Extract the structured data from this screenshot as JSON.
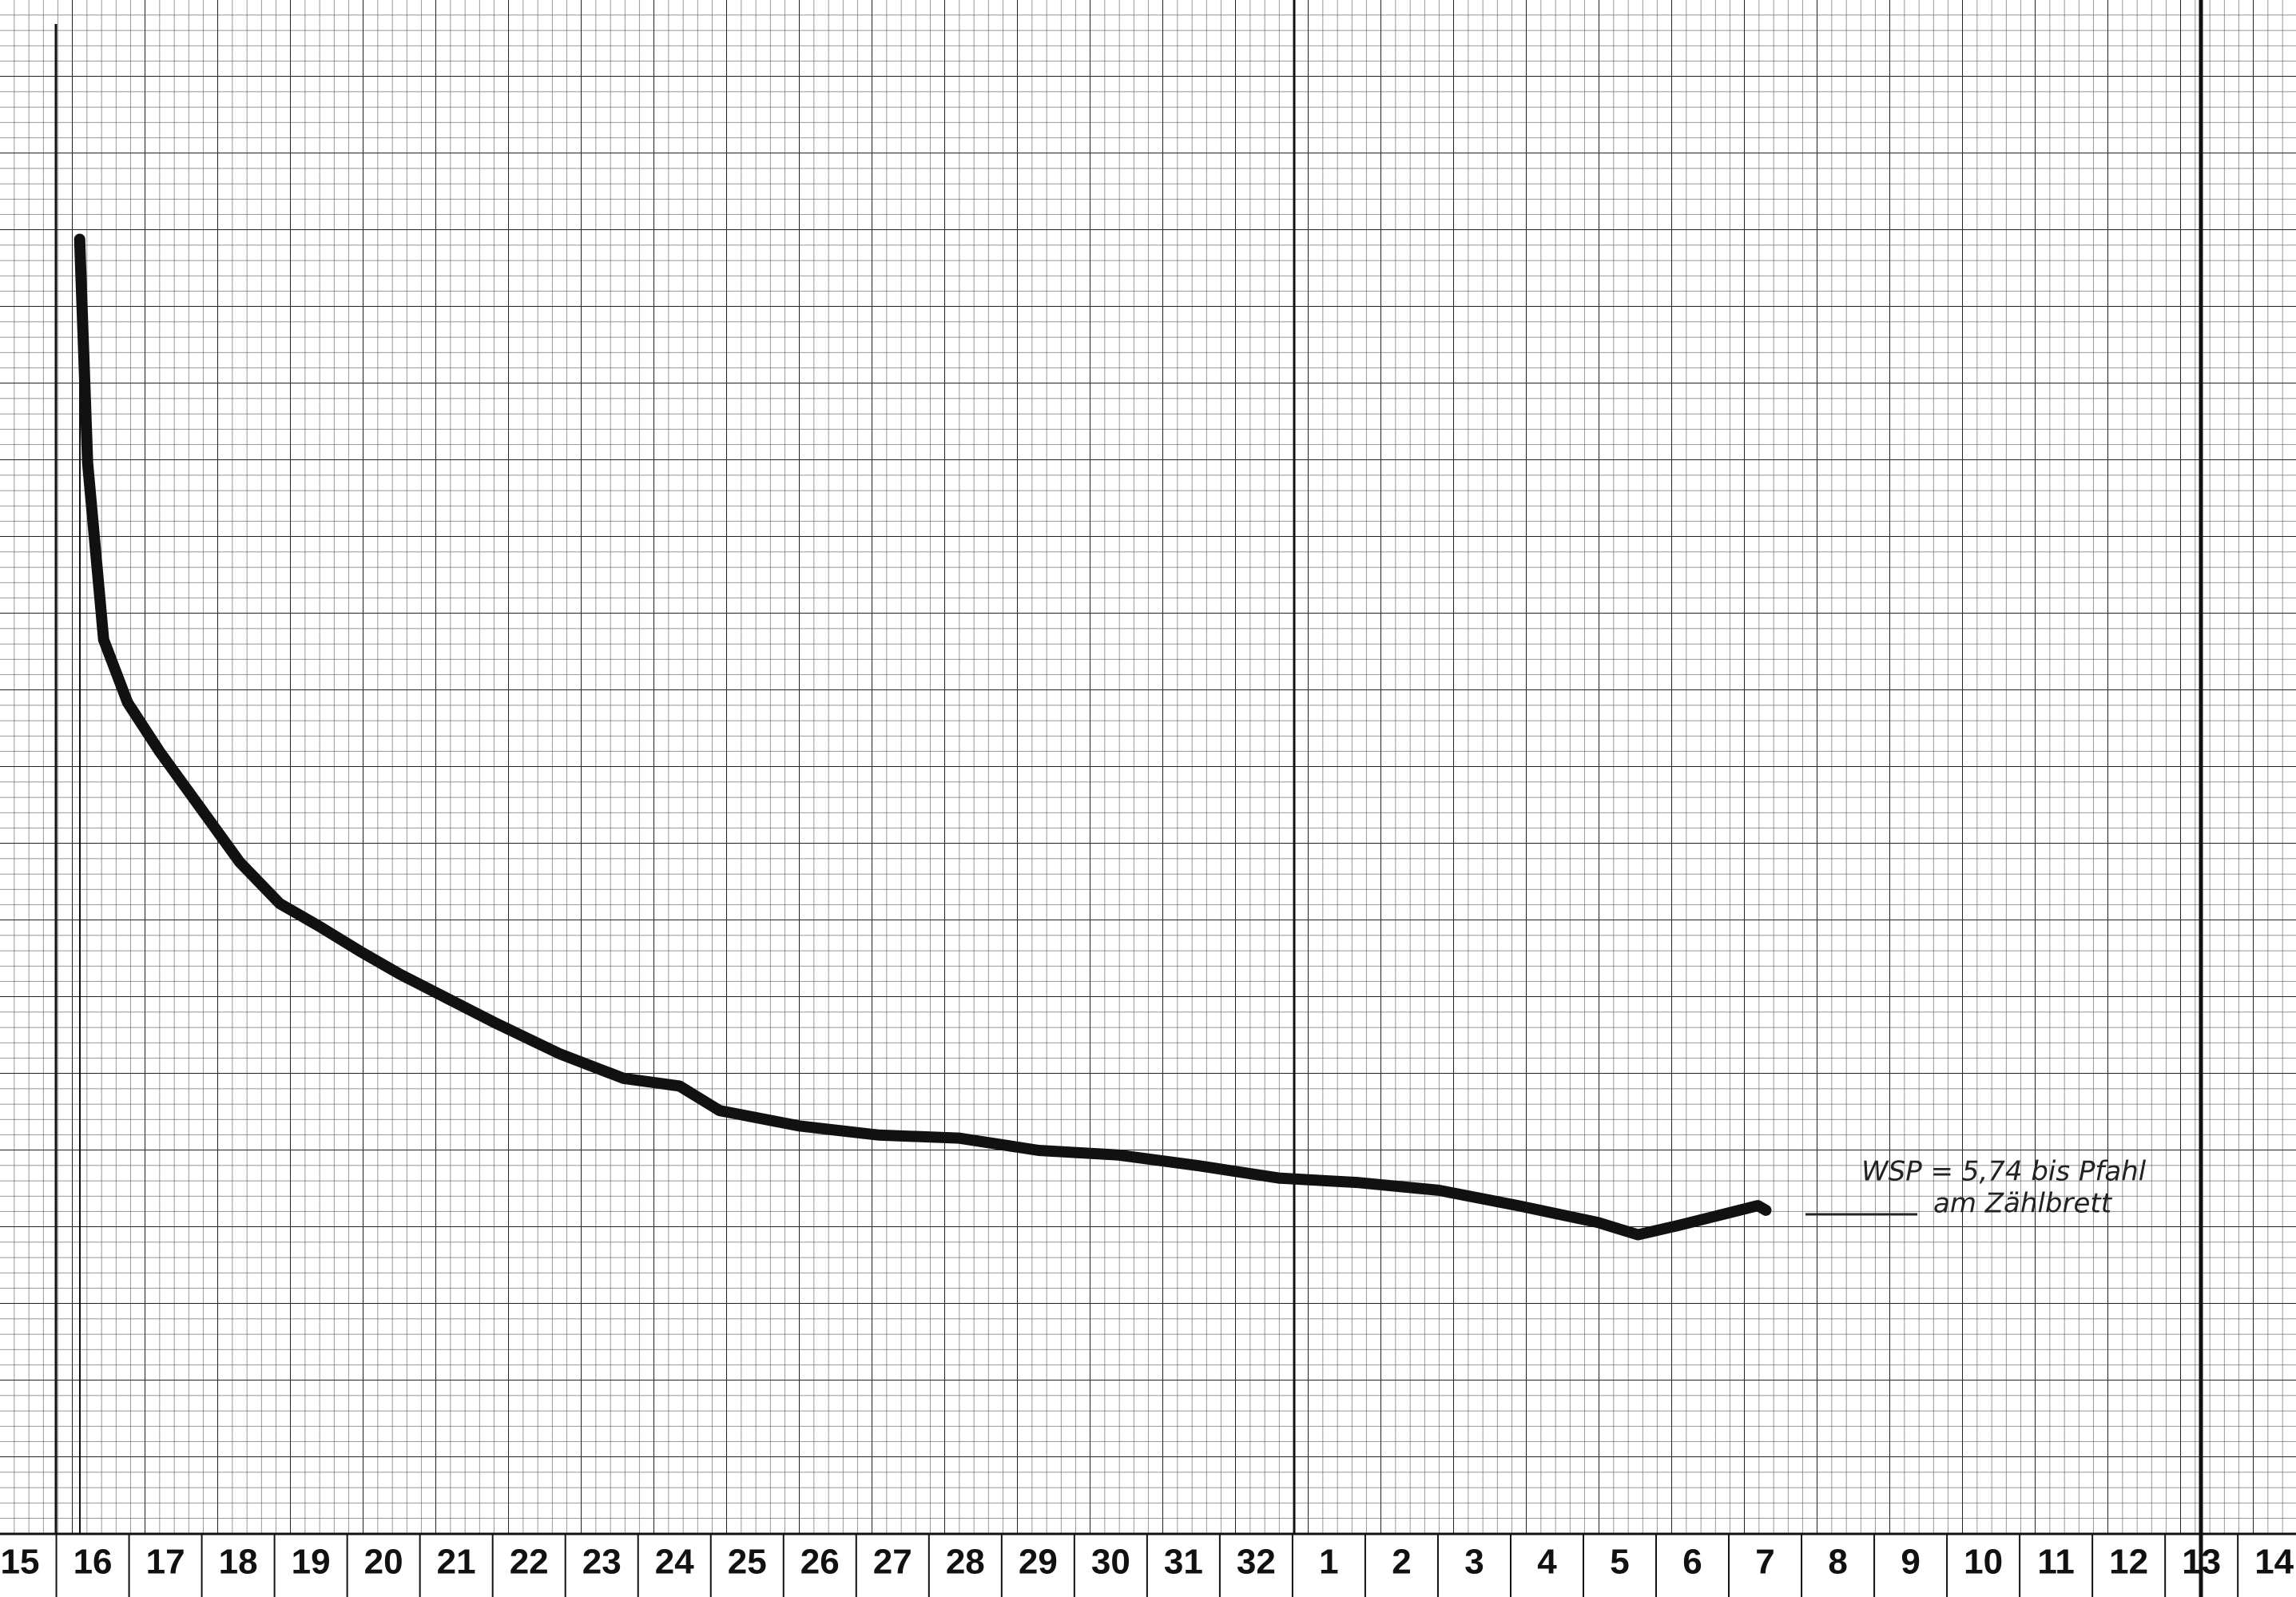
{
  "chart_data": {
    "type": "line",
    "categories": [
      "15",
      "16",
      "17",
      "18",
      "19",
      "20",
      "21",
      "22",
      "23",
      "24",
      "25",
      "26",
      "27",
      "28",
      "29",
      "30",
      "31",
      "32",
      "1",
      "2",
      "3",
      "4",
      "5",
      "6",
      "7",
      "8",
      "9",
      "10",
      "11",
      "12",
      "13",
      "14"
    ],
    "annotations": [
      "WSP = 5,74 bis Pfahl",
      "am Zählbrett"
    ],
    "xlim": [
      -0.275,
      31.3
    ],
    "ylim": [
      0,
      100
    ],
    "series": [
      {
        "color": "#111111",
        "x": [
          0.82,
          0.93,
          1.15,
          1.48,
          1.92,
          2.47,
          3.02,
          3.57,
          4.12,
          4.67,
          5.22,
          5.88,
          6.54,
          7.42,
          8.3,
          9.07,
          9.62,
          10.71,
          11.81,
          12.91,
          14.01,
          15.11,
          16.21,
          17.31,
          18.41,
          19.51,
          20.6,
          21.7,
          22.25,
          22.8,
          23.9,
          24.01
        ],
        "values": [
          84.4,
          69.8,
          58.3,
          54.2,
          51.0,
          47.4,
          43.8,
          41.1,
          39.6,
          38.0,
          36.5,
          34.9,
          33.3,
          31.3,
          29.7,
          29.2,
          27.6,
          26.6,
          26.0,
          25.8,
          25.0,
          24.7,
          24.0,
          23.2,
          22.9,
          22.4,
          21.4,
          20.3,
          19.5,
          20.1,
          21.4,
          21.1
        ]
      }
    ]
  }
}
